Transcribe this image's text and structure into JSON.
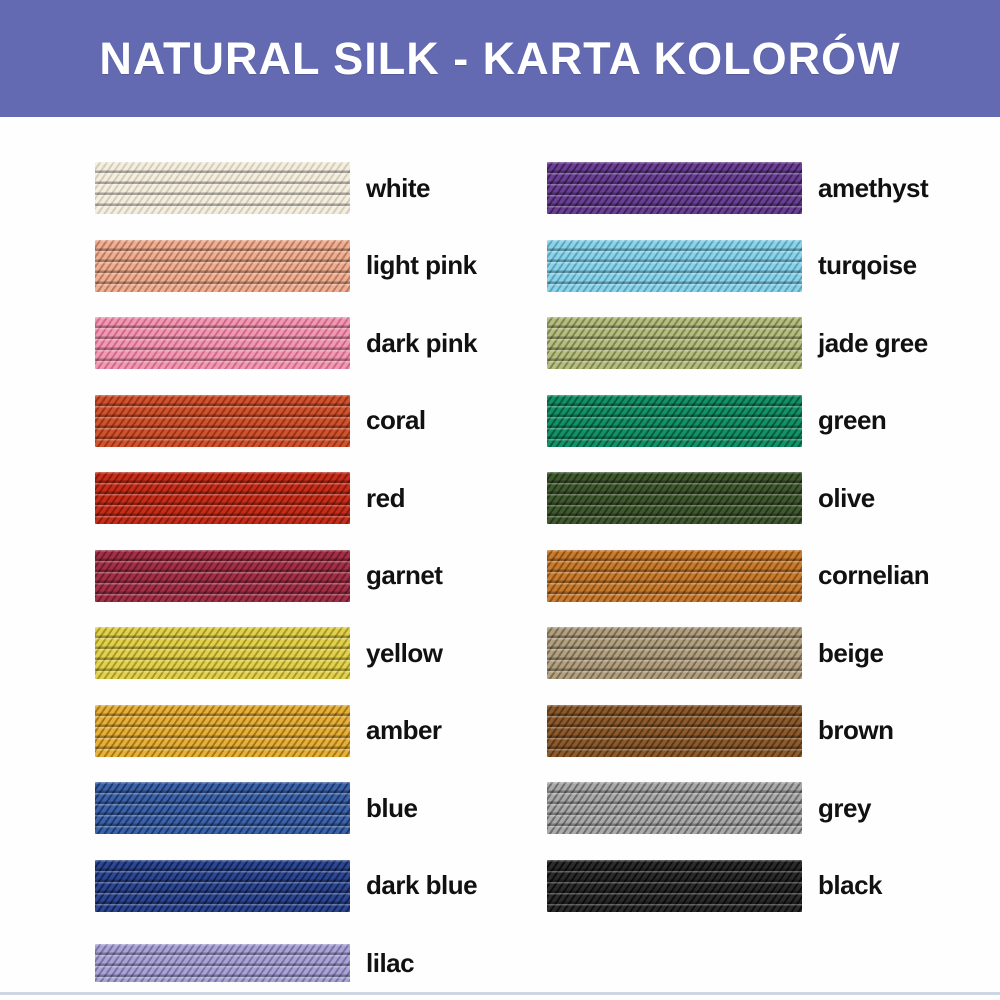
{
  "header": {
    "title": "NATURAL SILK - KARTA KOLORÓW",
    "bg": "#636ab1",
    "text_color": "#ffffff"
  },
  "columns": [
    {
      "side": "left",
      "items": [
        {
          "label": "white",
          "base": "#f1eee4",
          "stripe": "#d8ccb4"
        },
        {
          "label": "light pink",
          "base": "#ecb096",
          "stripe": "#c27b5b"
        },
        {
          "label": "dark pink",
          "base": "#ee9ab0",
          "stripe": "#d4688c"
        },
        {
          "label": "coral",
          "base": "#cf5331",
          "stripe": "#9e3413"
        },
        {
          "label": "red",
          "base": "#c62d1a",
          "stripe": "#8e1a0c"
        },
        {
          "label": "garnet",
          "base": "#a43048",
          "stripe": "#701c2e"
        },
        {
          "label": "yellow",
          "base": "#e2d14d",
          "stripe": "#a99a28"
        },
        {
          "label": "amber",
          "base": "#e7b03c",
          "stripe": "#a87a14"
        },
        {
          "label": "blue",
          "base": "#3c64ab",
          "stripe": "#20396f"
        },
        {
          "label": "dark blue",
          "base": "#2c4892",
          "stripe": "#152459"
        },
        {
          "label": "lilac",
          "base": "#a9a5d3",
          "stripe": "#7a73ab"
        }
      ]
    },
    {
      "side": "right",
      "items": [
        {
          "label": "amethyst",
          "base": "#6a4097",
          "stripe": "#402359"
        },
        {
          "label": "turqoise",
          "base": "#8fd2e7",
          "stripe": "#55a8c2"
        },
        {
          "label": "jade gree",
          "base": "#b6bc82",
          "stripe": "#7e894b"
        },
        {
          "label": "green",
          "base": "#129367",
          "stripe": "#0a5c40"
        },
        {
          "label": "olive",
          "base": "#40592f",
          "stripe": "#25371a"
        },
        {
          "label": "cornelian",
          "base": "#c97c30",
          "stripe": "#8f5212"
        },
        {
          "label": "beige",
          "base": "#b2a083",
          "stripe": "#7e6e50"
        },
        {
          "label": "brown",
          "base": "#8c5a2d",
          "stripe": "#5c3917"
        },
        {
          "label": "grey",
          "base": "#aaaaaa",
          "stripe": "#6f6f6f"
        },
        {
          "label": "black",
          "base": "#2b2b2b",
          "stripe": "#0d0d0d"
        }
      ]
    }
  ],
  "footer": {
    "line_color": "#cdd6e3"
  }
}
